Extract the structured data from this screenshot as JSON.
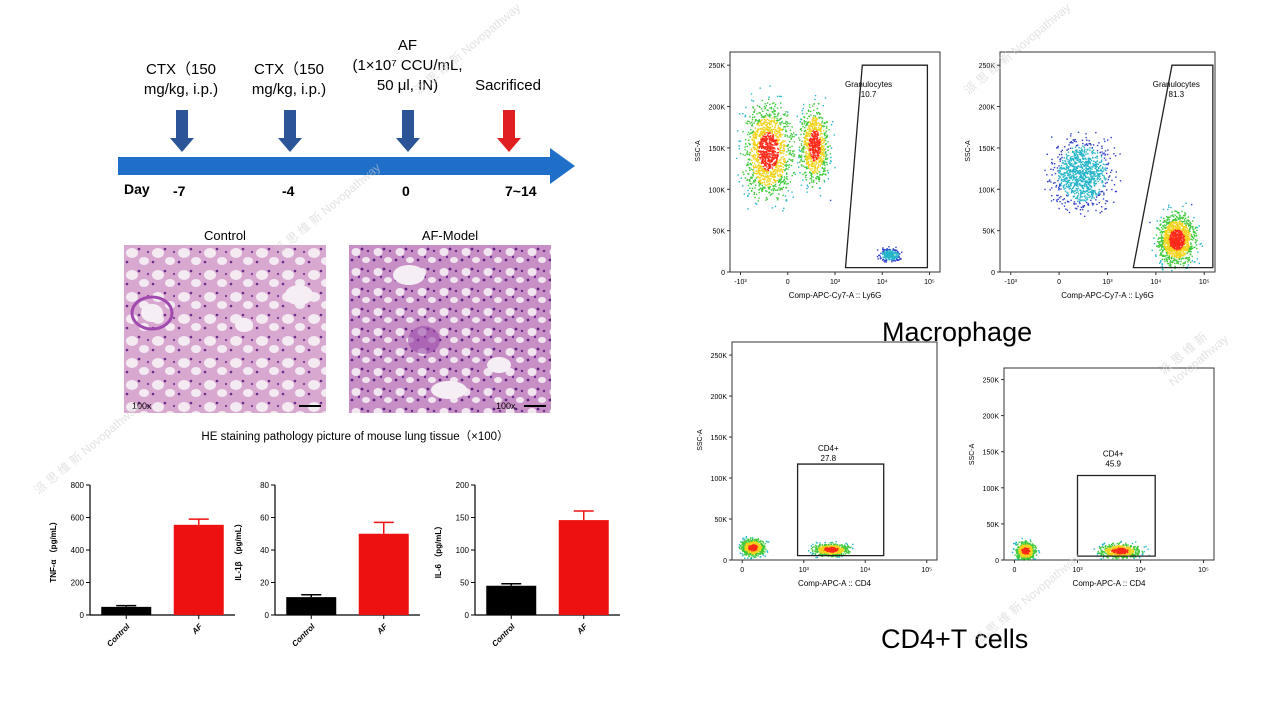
{
  "timeline": {
    "day_label": "Day",
    "events": [
      {
        "label_lines": [
          "CTX（150",
          "mg/kg, i.p.)"
        ],
        "day": "-7",
        "color": "#2b5597"
      },
      {
        "label_lines": [
          "CTX（150",
          "mg/kg, i.p.)"
        ],
        "day": "-4",
        "color": "#2b5597"
      },
      {
        "label_lines": [
          "AF",
          "(1×10⁷ CCU/mL,",
          "50 μl, IN)"
        ],
        "day": "0",
        "color": "#2b5597"
      },
      {
        "label_lines": [
          "Sacrificed"
        ],
        "day": "7~14",
        "color": "#e02020"
      }
    ],
    "arrow_color": "#1f6fc9"
  },
  "histology": {
    "panels": [
      {
        "title": "Control",
        "mag": "100x"
      },
      {
        "title": "AF-Model",
        "mag": "100x"
      }
    ],
    "caption": "HE staining pathology picture of mouse lung tissue（×100）"
  },
  "chart_data": [
    {
      "type": "bar",
      "categories": [
        "Control",
        "AF"
      ],
      "values": [
        50,
        555
      ],
      "errors": [
        8,
        35
      ],
      "ylabel": "TNF-α （pg/mL）",
      "ylim": [
        0,
        800
      ],
      "yticks": [
        0,
        200,
        400,
        600,
        800
      ],
      "colors": [
        "#000000",
        "#ee1111"
      ]
    },
    {
      "type": "bar",
      "categories": [
        "Control",
        "AF"
      ],
      "values": [
        11,
        50
      ],
      "errors": [
        1.5,
        7
      ],
      "ylabel": "IL-1β （pg/mL）",
      "ylim": [
        0,
        80
      ],
      "yticks": [
        0,
        20,
        40,
        60,
        80
      ],
      "colors": [
        "#000000",
        "#ee1111"
      ]
    },
    {
      "type": "bar",
      "categories": [
        "Control",
        "AF"
      ],
      "values": [
        45,
        146
      ],
      "errors": [
        3,
        14
      ],
      "ylabel": "IL-6 （pg/mL）",
      "ylim": [
        0,
        200
      ],
      "yticks": [
        0,
        50,
        100,
        150,
        200
      ],
      "colors": [
        "#000000",
        "#ee1111"
      ]
    }
  ],
  "flow": {
    "macrophage_title": "Macrophage",
    "tcell_title": "CD4+T cells",
    "plots": [
      {
        "gate_name": "Granulocytes",
        "gate_value": "10.7",
        "xlabel": "Comp-APC-Cy7-A :: Ly6G",
        "ylabel": "SSC-A",
        "yticks": [
          "0",
          "50K",
          "100K",
          "150K",
          "200K",
          "250K"
        ],
        "xticks": [
          "-10³",
          "0",
          "10³",
          "10⁴",
          "10⁵"
        ]
      },
      {
        "gate_name": "Granulocytes",
        "gate_value": "81.3",
        "xlabel": "Comp-APC-Cy7-A :: Ly6G",
        "ylabel": "SSC-A",
        "yticks": [
          "0",
          "50K",
          "100K",
          "150K",
          "200K",
          "250K"
        ],
        "xticks": [
          "-10³",
          "0",
          "10³",
          "10⁴",
          "10⁵"
        ]
      },
      {
        "gate_name": "CD4+",
        "gate_value": "27.8",
        "xlabel": "Comp-APC-A :: CD4",
        "ylabel": "SSC-A",
        "yticks": [
          "0",
          "50K",
          "100K",
          "150K",
          "200K",
          "250K"
        ],
        "xticks": [
          "0",
          "10³",
          "10⁴",
          "10⁵"
        ]
      },
      {
        "gate_name": "CD4+",
        "gate_value": "45.9",
        "xlabel": "Comp-APC-A :: CD4",
        "ylabel": "SSC-A",
        "yticks": [
          "0",
          "50K",
          "100K",
          "150K",
          "200K",
          "250K"
        ],
        "xticks": [
          "0",
          "10³",
          "10⁴",
          "10⁵"
        ]
      }
    ]
  },
  "watermark": {
    "cn": "派 思 维 新",
    "en": "Novopathway"
  }
}
